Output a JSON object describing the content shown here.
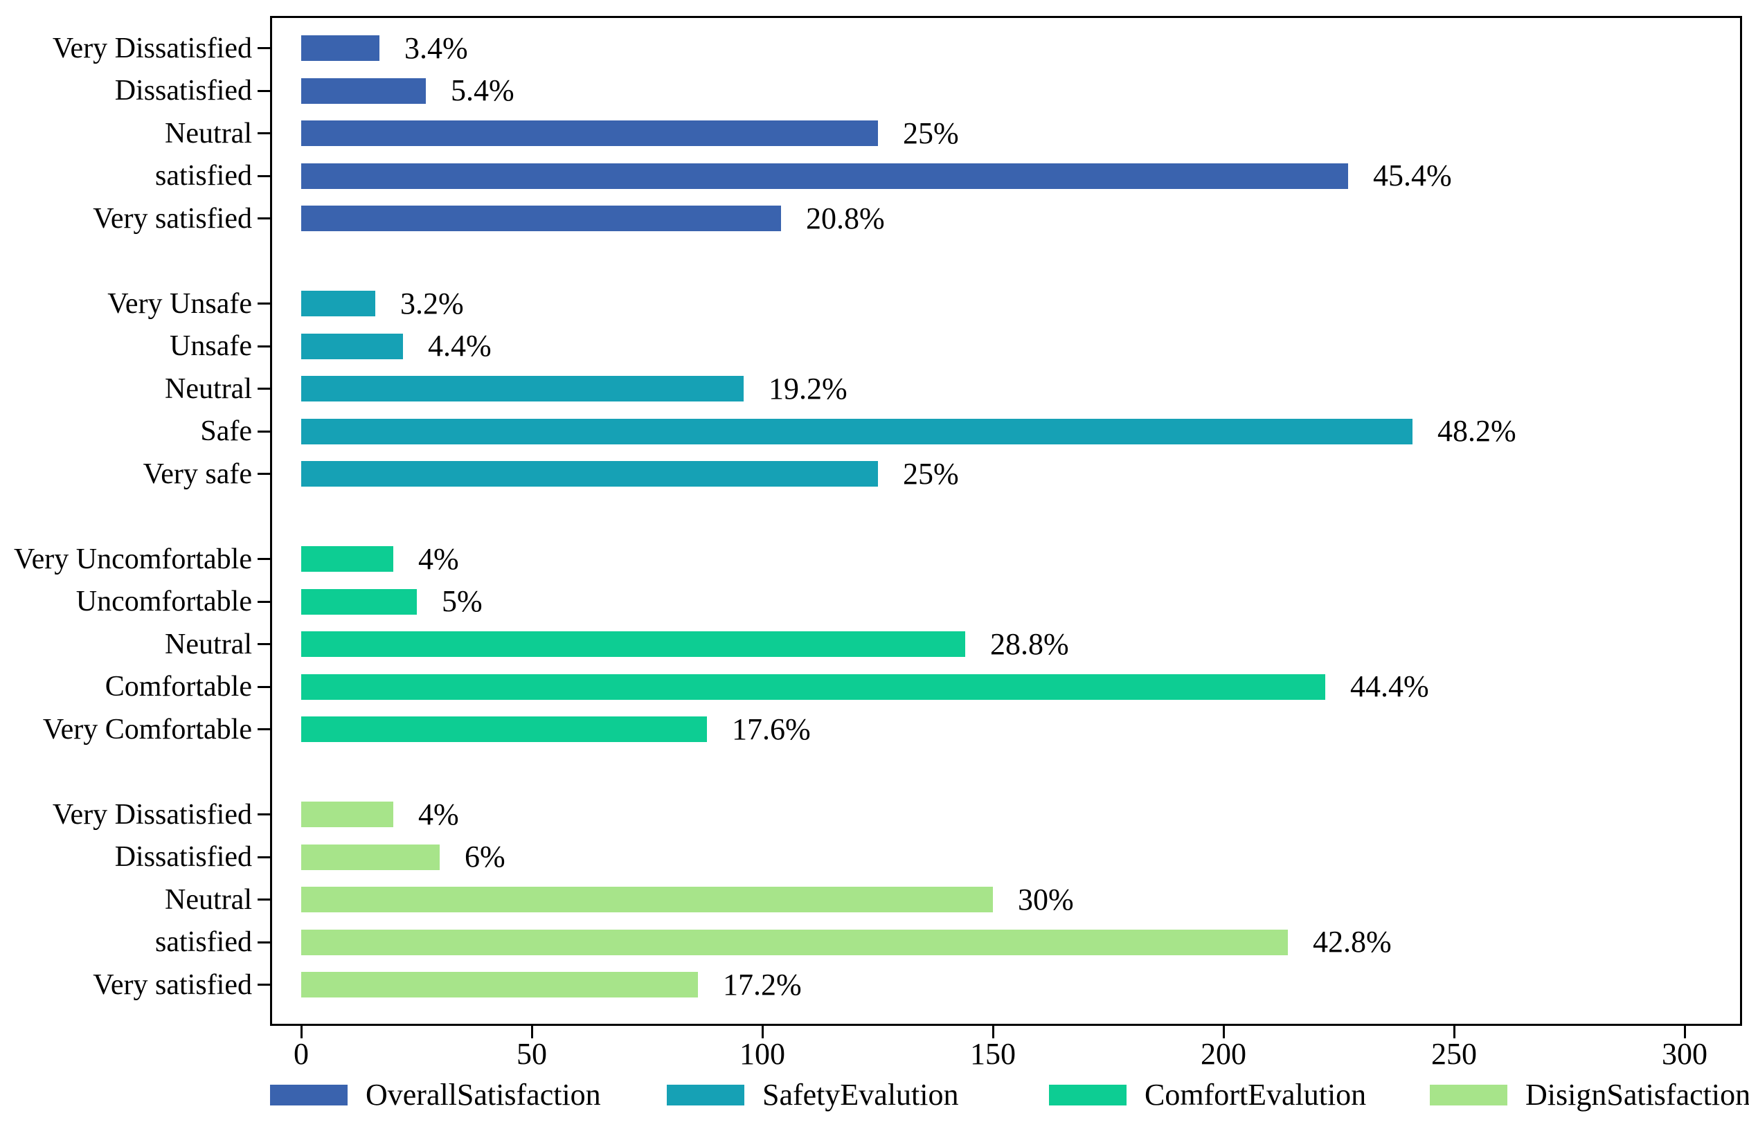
{
  "chart_data": {
    "type": "bar",
    "orientation": "horizontal",
    "title": "",
    "xlabel": "",
    "ylabel": "",
    "x_axis": {
      "tick_labels": [
        "0",
        "50",
        "100",
        "150",
        "200",
        "250",
        "300"
      ],
      "tick_values": [
        0,
        50,
        100,
        150,
        200,
        250,
        300
      ],
      "max": 300
    },
    "grid": false,
    "legend_position": "bottom",
    "groups": [
      {
        "name": "OverallSatisfaction",
        "color": "#3a63ae",
        "bars": [
          {
            "label": "Very Dissatisfied",
            "value": 17,
            "pct": "3.4%"
          },
          {
            "label": "Dissatisfied",
            "value": 27,
            "pct": "5.4%"
          },
          {
            "label": "Neutral",
            "value": 125,
            "pct": "25%"
          },
          {
            "label": "satisfied",
            "value": 227,
            "pct": "45.4%"
          },
          {
            "label": "Very satisfied",
            "value": 104,
            "pct": "20.8%"
          }
        ]
      },
      {
        "name": "SafetyEvalution",
        "color": "#16a1b5",
        "bars": [
          {
            "label": "Very Unsafe",
            "value": 16,
            "pct": "3.2%"
          },
          {
            "label": "Unsafe",
            "value": 22,
            "pct": "4.4%"
          },
          {
            "label": "Neutral",
            "value": 96,
            "pct": "19.2%"
          },
          {
            "label": "Safe",
            "value": 241,
            "pct": "48.2%"
          },
          {
            "label": "Very safe",
            "value": 125,
            "pct": "25%"
          }
        ]
      },
      {
        "name": "ComfortEvalution",
        "color": "#0dcd93",
        "bars": [
          {
            "label": "Very Uncomfortable",
            "value": 20,
            "pct": "4%"
          },
          {
            "label": "Uncomfortable",
            "value": 25,
            "pct": "5%"
          },
          {
            "label": "Neutral",
            "value": 144,
            "pct": "28.8%"
          },
          {
            "label": "Comfortable",
            "value": 222,
            "pct": "44.4%"
          },
          {
            "label": "Very Comfortable",
            "value": 88,
            "pct": "17.6%"
          }
        ]
      },
      {
        "name": "DisignSatisfaction",
        "color": "#a7e48a",
        "bars": [
          {
            "label": "Very Dissatisfied",
            "value": 20,
            "pct": "4%"
          },
          {
            "label": "Dissatisfied",
            "value": 30,
            "pct": "6%"
          },
          {
            "label": "Neutral",
            "value": 150,
            "pct": "30%"
          },
          {
            "label": "satisfied",
            "value": 214,
            "pct": "42.8%"
          },
          {
            "label": "Very satisfied",
            "value": 86,
            "pct": "17.2%"
          }
        ]
      }
    ],
    "legend": [
      "OverallSatisfaction",
      "SafetyEvalution",
      "ComfortEvalution",
      "DisignSatisfaction"
    ]
  }
}
